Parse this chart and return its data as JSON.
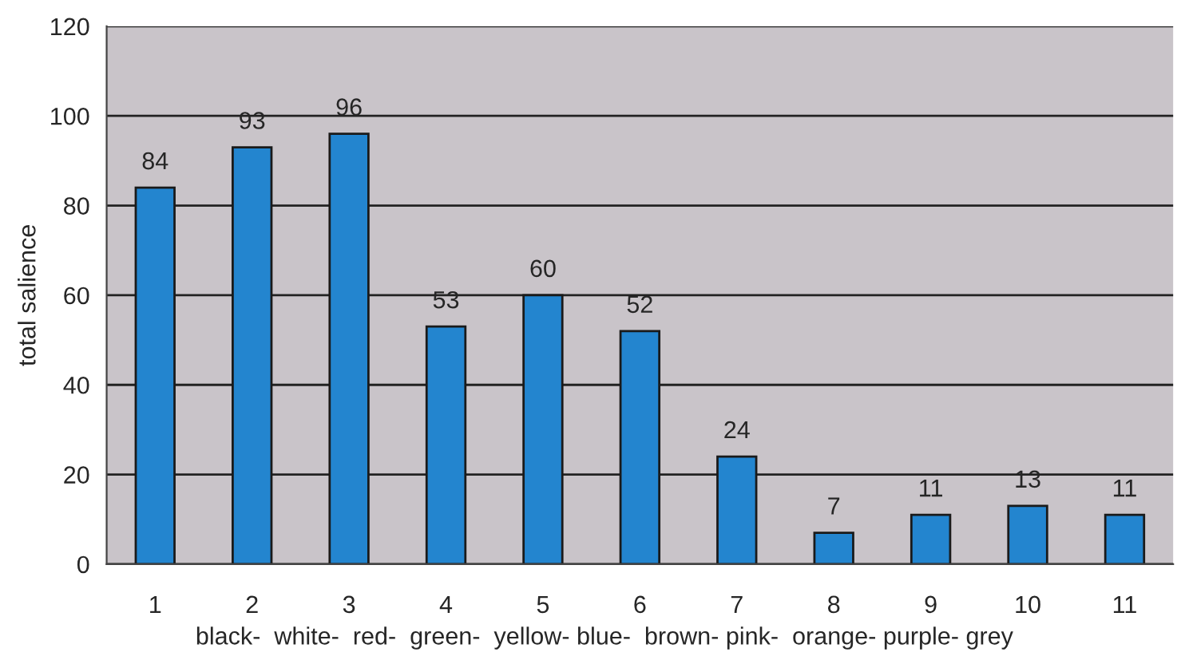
{
  "chart_data": {
    "type": "bar",
    "ylabel": "total salience",
    "categories": [
      "1",
      "2",
      "3",
      "4",
      "5",
      "6",
      "7",
      "8",
      "9",
      "10",
      "11"
    ],
    "values": [
      84,
      93,
      96,
      53,
      60,
      52,
      24,
      7,
      11,
      13,
      11
    ],
    "color": "#2385cf",
    "ylim": [
      0,
      120
    ],
    "yticks": [
      0,
      20,
      40,
      60,
      80,
      100,
      120
    ],
    "grid": "y",
    "data_labels": true,
    "annotations": [
      "black-  white-  red-  green-  yellow- blue-  brown- pink-  orange- purple- grey"
    ]
  }
}
